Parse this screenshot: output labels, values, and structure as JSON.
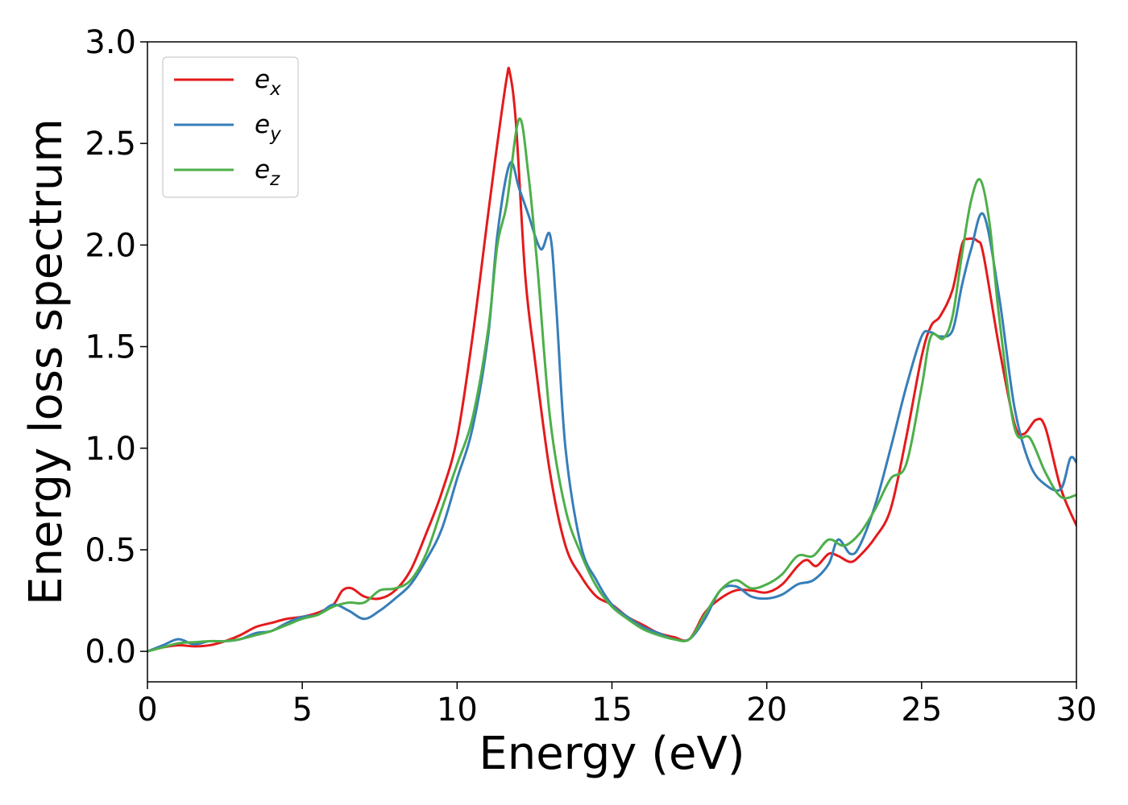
{
  "chart_data": {
    "type": "line",
    "xlabel": "Energy (eV)",
    "ylabel": "Energy loss spectrum",
    "xlim": [
      0,
      30
    ],
    "ylim": [
      -0.15,
      3.0
    ],
    "xticks": [
      "0",
      "5",
      "10",
      "15",
      "20",
      "25",
      "30"
    ],
    "yticks": [
      "0.0",
      "0.5",
      "1.0",
      "1.5",
      "2.0",
      "2.5",
      "3.0"
    ],
    "grid": false,
    "legend_position": "top-left",
    "series": [
      {
        "name": "e_x",
        "label_base": "e",
        "label_sub": "x",
        "color": "#e41a1c",
        "x": [
          0,
          0.5,
          1,
          1.5,
          2,
          2.5,
          3,
          3.5,
          4,
          4.5,
          5,
          5.5,
          6,
          6.3,
          6.6,
          7,
          7.5,
          8,
          8.5,
          9,
          9.5,
          10,
          10.5,
          11,
          11.3,
          11.6,
          11.7,
          11.9,
          12.2,
          12.5,
          13,
          13.5,
          14,
          14.5,
          15,
          15.5,
          16,
          16.5,
          17,
          17.5,
          18,
          18.5,
          19,
          19.5,
          20,
          20.5,
          21,
          21.3,
          21.6,
          22,
          22.3,
          22.7,
          23,
          23.5,
          24,
          24.5,
          25,
          25.3,
          25.6,
          26,
          26.3,
          26.5,
          26.8,
          27,
          27.5,
          28,
          28.3,
          28.7,
          29,
          29.5,
          30
        ],
        "y": [
          0.0,
          0.02,
          0.03,
          0.025,
          0.03,
          0.05,
          0.08,
          0.12,
          0.14,
          0.16,
          0.17,
          0.19,
          0.23,
          0.3,
          0.31,
          0.27,
          0.26,
          0.3,
          0.4,
          0.58,
          0.78,
          1.05,
          1.55,
          2.15,
          2.5,
          2.82,
          2.85,
          2.6,
          1.85,
          1.45,
          0.88,
          0.52,
          0.37,
          0.27,
          0.23,
          0.17,
          0.13,
          0.09,
          0.07,
          0.06,
          0.19,
          0.26,
          0.3,
          0.3,
          0.29,
          0.33,
          0.42,
          0.45,
          0.42,
          0.48,
          0.47,
          0.44,
          0.47,
          0.56,
          0.7,
          1.05,
          1.45,
          1.6,
          1.65,
          1.78,
          2.0,
          2.03,
          2.02,
          1.95,
          1.5,
          1.12,
          1.07,
          1.14,
          1.1,
          0.8,
          0.62
        ]
      },
      {
        "name": "e_y",
        "label_base": "e",
        "label_sub": "y",
        "color": "#377eb8",
        "x": [
          0,
          0.5,
          1,
          1.5,
          2,
          2.5,
          3,
          3.5,
          4,
          4.5,
          5,
          5.5,
          6,
          6.5,
          7,
          7.5,
          8,
          8.5,
          9,
          9.5,
          10,
          10.5,
          11,
          11.3,
          11.7,
          12,
          12.3,
          12.7,
          13,
          13.2,
          13.5,
          14,
          14.5,
          15,
          15.5,
          16,
          16.5,
          17,
          17.5,
          18,
          18.5,
          19,
          19.5,
          20,
          20.5,
          21,
          21.5,
          22,
          22.3,
          22.7,
          23,
          23.5,
          24,
          24.5,
          25,
          25.3,
          25.6,
          26,
          26.3,
          26.6,
          27,
          27.5,
          28,
          28.5,
          29,
          29.5,
          29.8,
          30
        ],
        "y": [
          0.0,
          0.03,
          0.06,
          0.035,
          0.05,
          0.05,
          0.06,
          0.09,
          0.1,
          0.14,
          0.17,
          0.18,
          0.23,
          0.2,
          0.16,
          0.2,
          0.26,
          0.33,
          0.45,
          0.6,
          0.85,
          1.1,
          1.55,
          2.05,
          2.4,
          2.28,
          2.15,
          1.98,
          2.05,
          1.7,
          1.0,
          0.52,
          0.35,
          0.23,
          0.17,
          0.12,
          0.09,
          0.06,
          0.06,
          0.16,
          0.3,
          0.32,
          0.27,
          0.26,
          0.28,
          0.33,
          0.35,
          0.43,
          0.55,
          0.48,
          0.52,
          0.72,
          1.0,
          1.3,
          1.55,
          1.57,
          1.55,
          1.58,
          1.8,
          1.98,
          2.15,
          1.75,
          1.2,
          0.92,
          0.82,
          0.8,
          0.95,
          0.93
        ]
      },
      {
        "name": "e_z",
        "label_base": "e",
        "label_sub": "z",
        "color": "#4daf4a",
        "x": [
          0,
          0.5,
          1,
          1.5,
          2,
          2.5,
          3,
          3.5,
          4,
          4.5,
          5,
          5.5,
          6,
          6.5,
          7,
          7.5,
          8,
          8.5,
          9,
          9.5,
          10,
          10.5,
          11,
          11.3,
          11.6,
          12,
          12.3,
          12.6,
          13,
          13.5,
          14,
          14.5,
          15,
          15.5,
          16,
          16.5,
          17,
          17.5,
          18,
          18.5,
          19,
          19.5,
          20,
          20.5,
          21,
          21.5,
          22,
          22.5,
          23,
          23.5,
          24,
          24.5,
          25,
          25.3,
          25.7,
          26,
          26.3,
          26.6,
          26.9,
          27.2,
          27.5,
          28,
          28.5,
          29,
          29.5,
          30
        ],
        "y": [
          0.0,
          0.02,
          0.04,
          0.045,
          0.05,
          0.05,
          0.06,
          0.08,
          0.1,
          0.13,
          0.16,
          0.18,
          0.22,
          0.24,
          0.24,
          0.3,
          0.31,
          0.35,
          0.48,
          0.7,
          0.92,
          1.15,
          1.58,
          2.0,
          2.2,
          2.62,
          2.35,
          1.88,
          1.15,
          0.7,
          0.48,
          0.32,
          0.22,
          0.16,
          0.11,
          0.08,
          0.06,
          0.06,
          0.18,
          0.3,
          0.35,
          0.31,
          0.33,
          0.38,
          0.47,
          0.47,
          0.55,
          0.52,
          0.58,
          0.7,
          0.85,
          0.92,
          1.3,
          1.55,
          1.54,
          1.65,
          1.95,
          2.22,
          2.32,
          2.1,
          1.65,
          1.1,
          1.05,
          0.88,
          0.76,
          0.77
        ]
      }
    ]
  }
}
